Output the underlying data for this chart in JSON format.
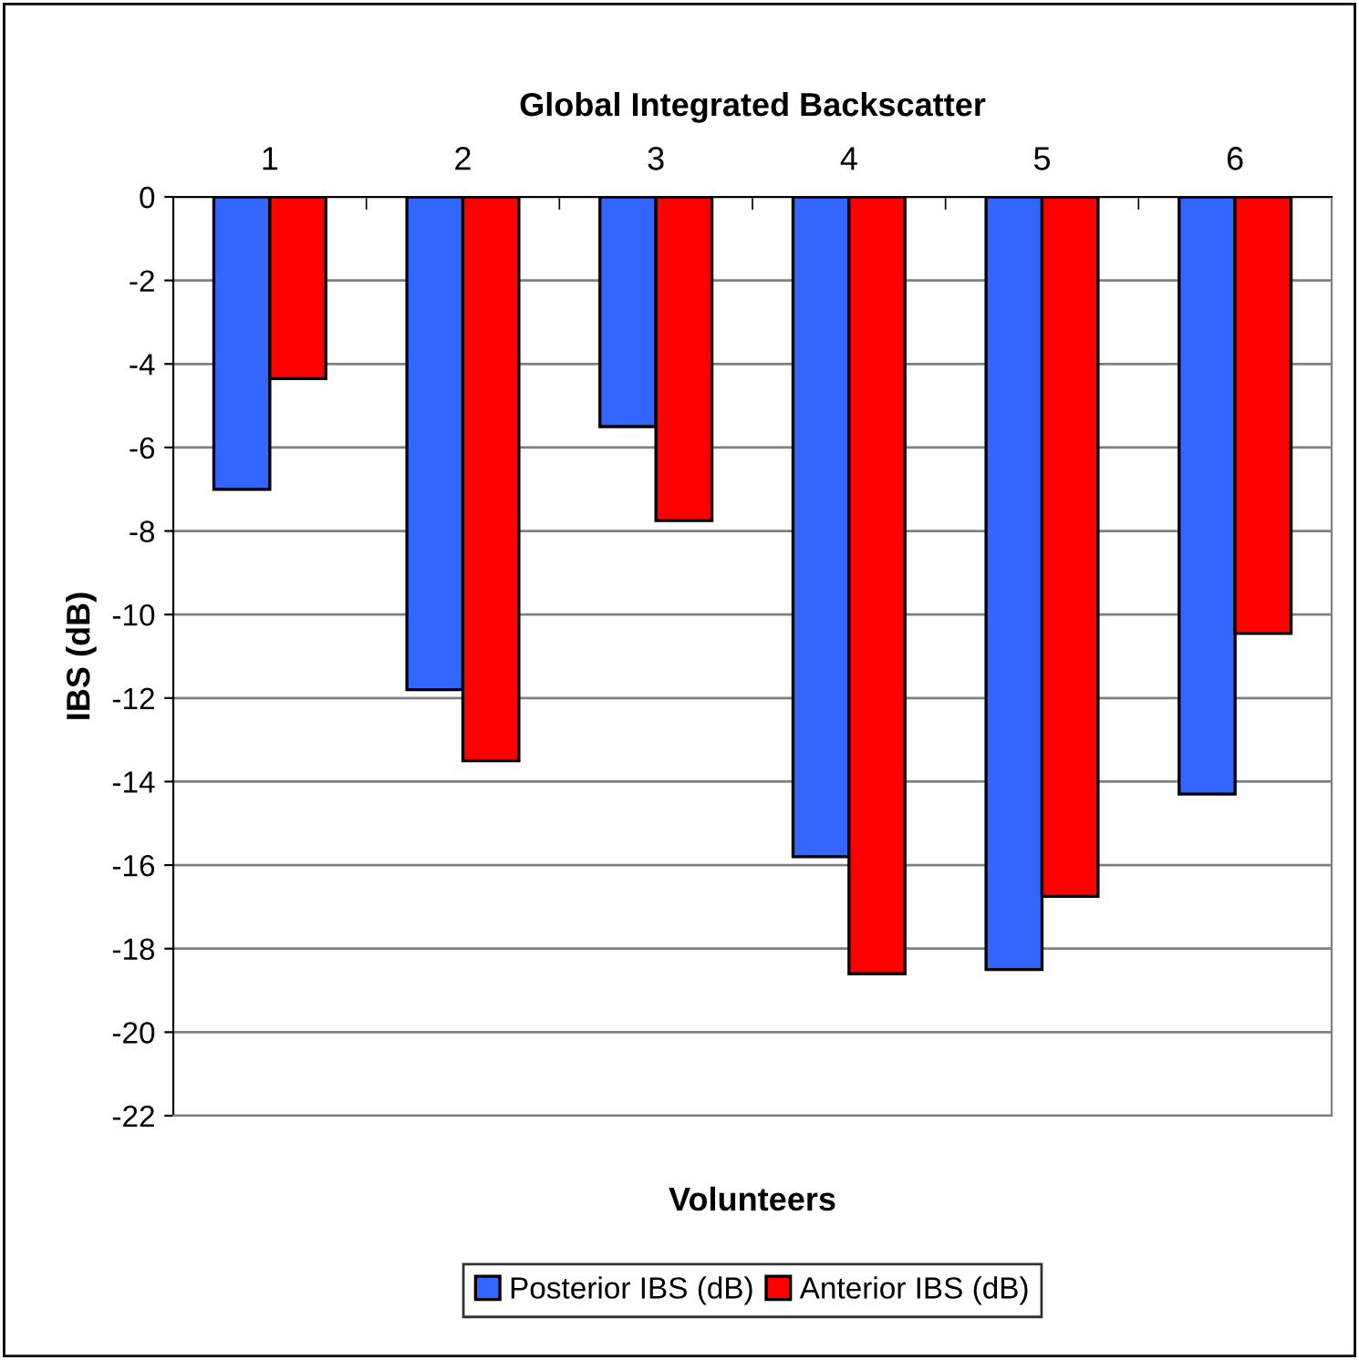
{
  "chart_data": {
    "type": "bar",
    "title": "Global Integrated Backscatter",
    "xlabel": "Volunteers",
    "ylabel": "IBS (dB)",
    "categories": [
      "1",
      "2",
      "3",
      "4",
      "5",
      "6"
    ],
    "series": [
      {
        "name": "Posterior IBS (dB)",
        "color": "#3366ff",
        "values": [
          -7.0,
          -11.8,
          -5.5,
          -15.8,
          -18.5,
          -14.3
        ]
      },
      {
        "name": "Anterior IBS (dB)",
        "color": "#ff0000",
        "values": [
          -4.35,
          -13.5,
          -7.75,
          -18.6,
          -16.75,
          -10.45
        ]
      }
    ],
    "ylim": [
      -22,
      0
    ],
    "yticks": [
      0,
      -2,
      -4,
      -6,
      -8,
      -10,
      -12,
      -14,
      -16,
      -18,
      -20,
      -22
    ],
    "grid": "y",
    "legend": "bottom"
  }
}
